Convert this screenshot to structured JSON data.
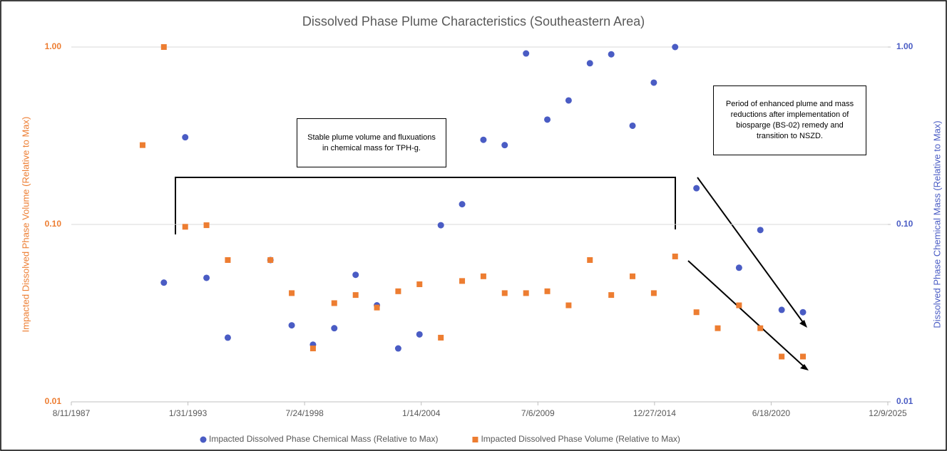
{
  "chart_data": {
    "type": "scatter",
    "title": "Dissolved Phase Plume Characteristics (Southeastern Area)",
    "y_label": "Impacted Dissolved Phase Volume (Relative to Max)",
    "y2_label": "Dissolved Phase Chemical Mass (Relative to Max)",
    "log_scale": true,
    "grid": true,
    "legend": "bottom",
    "x": [
      "1990-12-15",
      "1991-12-15",
      "1992-12-15",
      "1993-12-15",
      "1994-12-15",
      "1995-12-15",
      "1996-12-15",
      "1997-12-15",
      "1998-12-15",
      "1999-12-15",
      "2000-12-15",
      "2001-12-15",
      "2002-12-15",
      "2003-12-15",
      "2004-12-15",
      "2005-12-15",
      "2006-12-15",
      "2007-12-15",
      "2008-12-15",
      "2009-12-15",
      "2010-12-15",
      "2011-12-15",
      "2012-12-15",
      "2013-12-15",
      "2014-12-15",
      "2015-12-15",
      "2016-12-15",
      "2017-12-15",
      "2018-12-15",
      "2019-12-15",
      "2020-12-15",
      "2021-12-15"
    ],
    "series": [
      {
        "name": "Impacted Dissolved Phase Chemical Mass (Relative to Max)",
        "color": "#4a5cc4",
        "marker": "circle",
        "axis": "y2",
        "values": [
          null,
          0.047,
          0.31,
          0.05,
          0.023,
          null,
          0.063,
          0.027,
          0.021,
          0.026,
          0.052,
          0.035,
          0.02,
          0.024,
          0.099,
          0.13,
          0.3,
          0.28,
          0.92,
          0.39,
          0.5,
          0.81,
          0.91,
          0.36,
          0.63,
          1.0,
          0.16,
          null,
          0.057,
          0.093,
          0.033,
          0.032
        ]
      },
      {
        "name": "Impacted Dissolved Phase Volume (Relative to Max)",
        "color": "#ed7d31",
        "marker": "square",
        "axis": "y",
        "values": [
          0.28,
          1.0,
          0.097,
          0.099,
          0.063,
          null,
          0.063,
          0.041,
          0.02,
          0.036,
          0.04,
          0.034,
          0.042,
          0.046,
          0.023,
          0.048,
          0.051,
          0.041,
          0.041,
          0.042,
          0.035,
          0.063,
          0.04,
          0.051,
          0.041,
          0.066,
          0.032,
          0.026,
          0.035,
          0.026,
          0.018,
          0.018
        ]
      }
    ],
    "xlim": [
      "1987-08-11",
      "2025-12-09"
    ],
    "xticks": [
      {
        "value": "1987-08-11",
        "label": "8/11/1987"
      },
      {
        "value": "1993-01-31",
        "label": "1/31/1993"
      },
      {
        "value": "1998-07-24",
        "label": "7/24/1998"
      },
      {
        "value": "2004-01-14",
        "label": "1/14/2004"
      },
      {
        "value": "2009-07-06",
        "label": "7/6/2009"
      },
      {
        "value": "2014-12-27",
        "label": "12/27/2014"
      },
      {
        "value": "2020-06-18",
        "label": "6/18/2020"
      },
      {
        "value": "2025-12-09",
        "label": "12/9/2025"
      }
    ],
    "ylim": [
      0.01,
      1
    ],
    "yticks": [
      0.01,
      {
        "value": 0.1,
        "label": "0.10"
      },
      {
        "value": 1,
        "label": "1.00"
      }
    ],
    "y2lim": [
      0.01,
      1
    ],
    "y2ticks": [
      0.01,
      {
        "value": 0.1,
        "label": "0.10"
      },
      {
        "value": 1,
        "label": "1.00"
      }
    ],
    "annotations": [
      "Stable plume volume and fluxuations in chemical mass for TPH-g.",
      "Period of enhanced plume and mass reductions after implementation of biosparge (BS-02) remedy and transition to NSZD."
    ]
  }
}
